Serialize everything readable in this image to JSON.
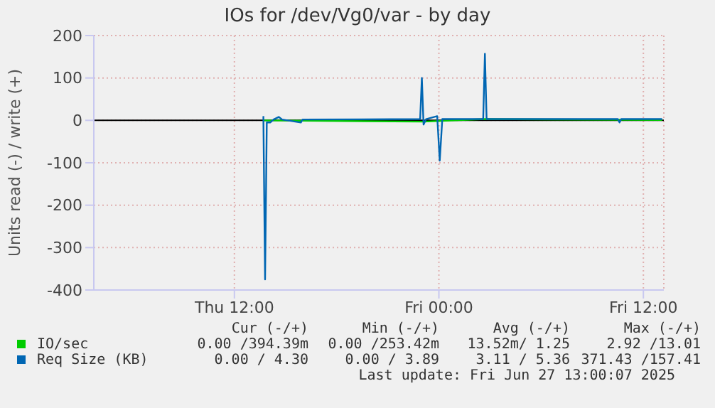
{
  "chart_data": {
    "type": "line",
    "title": "IOs for /dev/Vg0/var - by day",
    "ylabel": "Units read (-) / write (+)",
    "xlim": [
      "2025-06-26T03:45",
      "2025-06-27T13:12"
    ],
    "xticks": [
      {
        "value": "2025-06-26T12:00",
        "label": "Thu 12:00"
      },
      {
        "value": "2025-06-27T00:00",
        "label": "Fri 00:00"
      },
      {
        "value": "2025-06-27T12:00",
        "label": "Fri 12:00"
      }
    ],
    "ylim": [
      -400,
      200
    ],
    "yticks": [
      -400,
      -300,
      -200,
      -100,
      0,
      100,
      200
    ],
    "grid": true,
    "legend": "bottom",
    "marker": "none",
    "line_style": "solid",
    "ref_lines": [
      {
        "axis": "y",
        "value": 0,
        "color": "#000000"
      }
    ],
    "series": [
      {
        "name": "IO/sec",
        "color": "#00cc00",
        "x": [
          "2025-06-26T13:42",
          "2025-06-26T23:06",
          "2025-06-27T02:42",
          "2025-06-27T13:06"
        ],
        "values": [
          0,
          -3,
          3,
          1
        ]
      },
      {
        "name": "Req Size (KB)",
        "color": "#0066b3",
        "x": [
          "2025-06-26T13:42",
          "2025-06-26T13:48",
          "2025-06-26T13:54",
          "2025-06-26T14:06",
          "2025-06-26T14:18",
          "2025-06-26T14:36",
          "2025-06-26T14:48",
          "2025-06-26T15:54",
          "2025-06-26T16:00",
          "2025-06-26T22:54",
          "2025-06-26T23:00",
          "2025-06-26T23:06",
          "2025-06-26T23:15",
          "2025-06-26T23:54",
          "2025-06-27T00:03",
          "2025-06-27T00:12",
          "2025-06-27T02:36",
          "2025-06-27T02:42",
          "2025-06-27T02:48",
          "2025-06-27T10:30",
          "2025-06-27T10:36",
          "2025-06-27T10:42",
          "2025-06-27T13:06"
        ],
        "values": [
          10,
          -375,
          -5,
          -5,
          2,
          8,
          2,
          -5,
          2,
          3,
          100,
          -10,
          3,
          10,
          -95,
          3,
          3,
          157,
          3,
          3,
          -5,
          3,
          3
        ]
      }
    ],
    "annotations": [
      "Cur (-/+)",
      "Min (-/+)",
      "Avg (-/+)",
      "Max (-/+)",
      "0.00 /394.39m",
      "0.00 /253.42m",
      "13.52m/ 1.25",
      "2.92 /13.01",
      "0.00 / 4.30",
      "0.00 / 3.89",
      "3.11 / 5.36",
      "371.43 /157.41",
      "Last update: Fri Jun 27 13:00:07 2025"
    ]
  }
}
